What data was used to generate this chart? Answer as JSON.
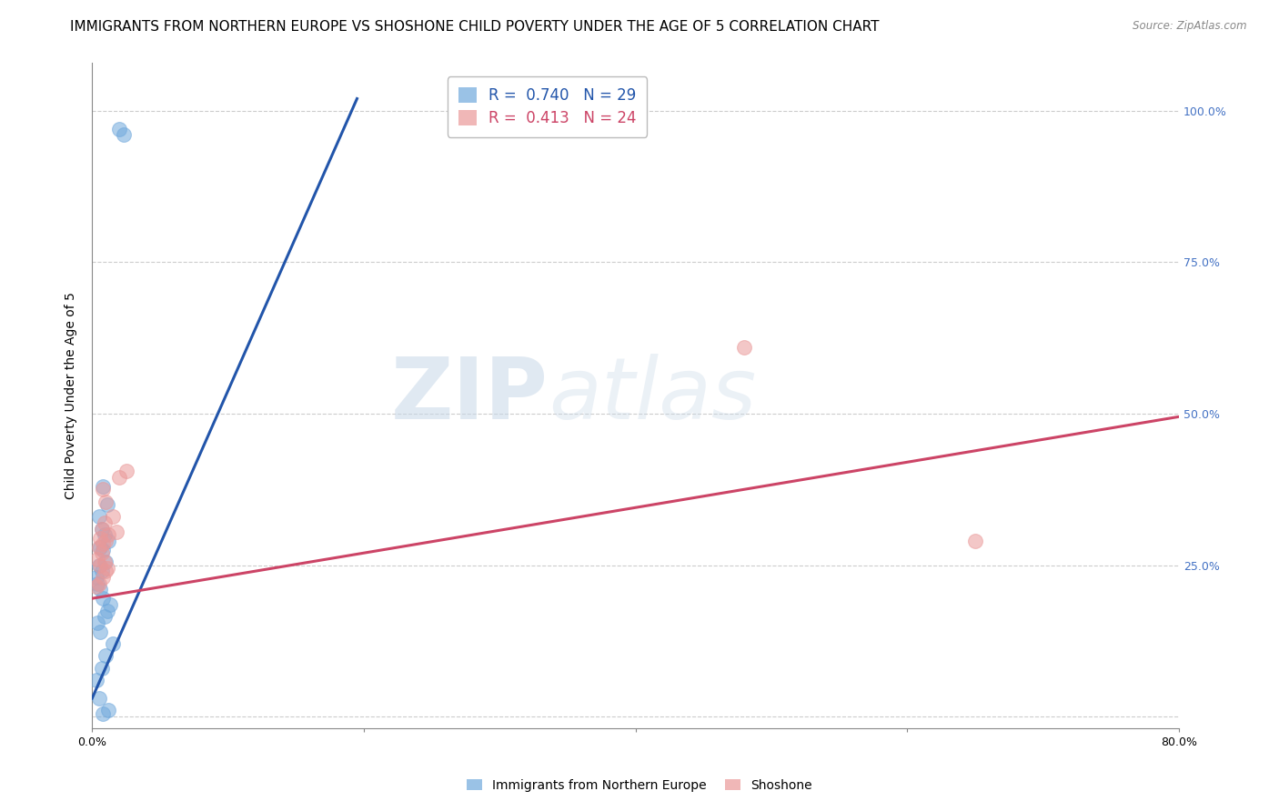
{
  "title": "IMMIGRANTS FROM NORTHERN EUROPE VS SHOSHONE CHILD POVERTY UNDER THE AGE OF 5 CORRELATION CHART",
  "source": "Source: ZipAtlas.com",
  "ylabel": "Child Poverty Under the Age of 5",
  "xlim": [
    0.0,
    0.8
  ],
  "ylim": [
    -0.02,
    1.08
  ],
  "xticks": [
    0.0,
    0.2,
    0.4,
    0.6,
    0.8
  ],
  "xticklabels": [
    "0.0%",
    "",
    "",
    "",
    "80.0%"
  ],
  "ytick_positions": [
    0.0,
    0.25,
    0.5,
    0.75,
    1.0
  ],
  "ytick_labels_right": [
    "",
    "25.0%",
    "50.0%",
    "75.0%",
    "100.0%"
  ],
  "blue_color": "#6fa8dc",
  "pink_color": "#ea9999",
  "blue_line_color": "#2255aa",
  "pink_line_color": "#cc4466",
  "blue_R": 0.74,
  "blue_N": 29,
  "pink_R": 0.413,
  "pink_N": 24,
  "legend_label_blue": "Immigrants from Northern Europe",
  "legend_label_pink": "Shoshone",
  "watermark_text": "ZIP",
  "watermark_text2": "atlas",
  "blue_scatter_x": [
    0.008,
    0.012,
    0.005,
    0.003,
    0.007,
    0.01,
    0.015,
    0.006,
    0.004,
    0.009,
    0.011,
    0.013,
    0.008,
    0.006,
    0.004,
    0.003,
    0.007,
    0.005,
    0.01,
    0.008,
    0.006,
    0.012,
    0.009,
    0.007,
    0.005,
    0.011,
    0.008,
    0.02,
    0.023
  ],
  "blue_scatter_y": [
    0.005,
    0.01,
    0.03,
    0.06,
    0.08,
    0.1,
    0.12,
    0.14,
    0.155,
    0.165,
    0.175,
    0.185,
    0.195,
    0.21,
    0.22,
    0.23,
    0.24,
    0.25,
    0.255,
    0.275,
    0.28,
    0.29,
    0.3,
    0.31,
    0.33,
    0.35,
    0.38,
    0.97,
    0.96
  ],
  "pink_scatter_x": [
    0.003,
    0.005,
    0.008,
    0.01,
    0.006,
    0.004,
    0.007,
    0.009,
    0.011,
    0.005,
    0.008,
    0.01,
    0.006,
    0.012,
    0.007,
    0.009,
    0.015,
    0.018,
    0.01,
    0.008,
    0.02,
    0.025,
    0.48,
    0.65
  ],
  "pink_scatter_y": [
    0.215,
    0.22,
    0.23,
    0.24,
    0.25,
    0.26,
    0.27,
    0.255,
    0.245,
    0.28,
    0.285,
    0.29,
    0.295,
    0.3,
    0.31,
    0.32,
    0.33,
    0.305,
    0.355,
    0.375,
    0.395,
    0.405,
    0.61,
    0.29
  ],
  "blue_line_x": [
    0.0,
    0.195
  ],
  "blue_line_y": [
    0.03,
    1.02
  ],
  "pink_line_x": [
    0.0,
    0.8
  ],
  "pink_line_y": [
    0.195,
    0.495
  ],
  "marker_size": 130,
  "grid_color": "#cccccc",
  "grid_linestyle": "--",
  "background_color": "#ffffff",
  "title_fontsize": 11,
  "axis_label_fontsize": 10,
  "tick_fontsize": 9,
  "legend_fontsize": 12,
  "right_tick_color": "#4472c4"
}
